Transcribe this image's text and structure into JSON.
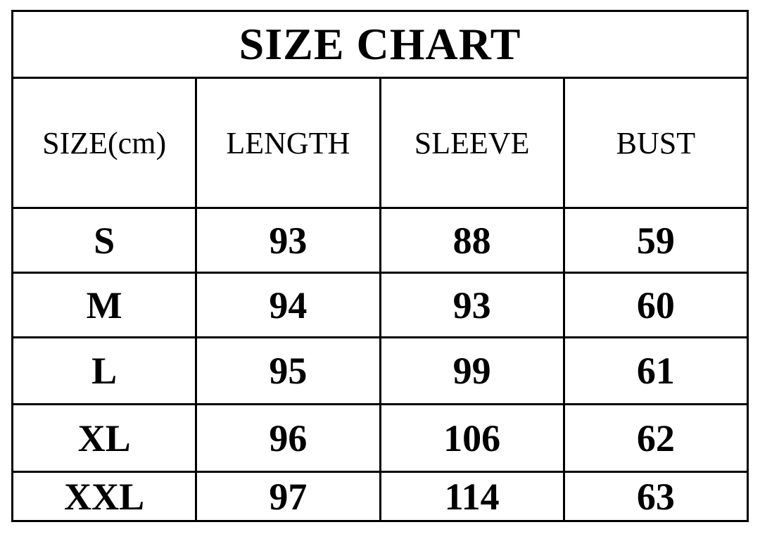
{
  "title": "SIZE CHART",
  "colors": {
    "background": "#ffffff",
    "border": "#000000",
    "text": "#000000"
  },
  "chart_data": {
    "type": "table",
    "title": "SIZE CHART",
    "columns": [
      "SIZE(cm)",
      "LENGTH",
      "SLEEVE",
      "BUST"
    ],
    "rows": [
      [
        "S",
        "93",
        "88",
        "59"
      ],
      [
        "M",
        "94",
        "93",
        "60"
      ],
      [
        "L",
        "95",
        "99",
        "61"
      ],
      [
        "XL",
        "96",
        "106",
        "62"
      ],
      [
        "XXL",
        "97",
        "114",
        "63"
      ]
    ]
  }
}
